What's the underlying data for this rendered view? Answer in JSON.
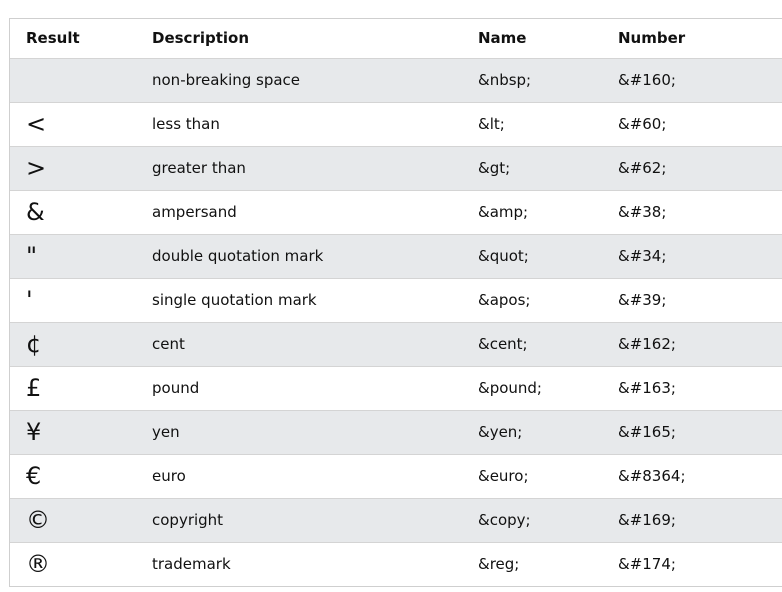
{
  "table": {
    "headers": {
      "result": "Result",
      "description": "Description",
      "name": "Name",
      "number": "Number"
    },
    "rows": [
      {
        "result": " ",
        "description": "non-breaking space",
        "name": "&nbsp;",
        "number": "&#160;"
      },
      {
        "result": "<",
        "description": "less than",
        "name": "&lt;",
        "number": "&#60;"
      },
      {
        "result": ">",
        "description": "greater than",
        "name": "&gt;",
        "number": "&#62;"
      },
      {
        "result": "&",
        "description": "ampersand",
        "name": "&amp;",
        "number": "&#38;"
      },
      {
        "result": "\"",
        "description": "double quotation mark",
        "name": "&quot;",
        "number": "&#34;"
      },
      {
        "result": "'",
        "description": "single quotation mark",
        "name": "&apos;",
        "number": "&#39;"
      },
      {
        "result": "¢",
        "description": "cent",
        "name": "&cent;",
        "number": "&#162;"
      },
      {
        "result": "£",
        "description": "pound",
        "name": "&pound;",
        "number": "&#163;"
      },
      {
        "result": "¥",
        "description": "yen",
        "name": "&yen;",
        "number": "&#165;"
      },
      {
        "result": "€",
        "description": "euro",
        "name": "&euro;",
        "number": "&#8364;"
      },
      {
        "result": "©",
        "description": "copyright",
        "name": "&copy;",
        "number": "&#169;"
      },
      {
        "result": "®",
        "description": "trademark",
        "name": "&reg;",
        "number": "&#174;"
      }
    ]
  }
}
